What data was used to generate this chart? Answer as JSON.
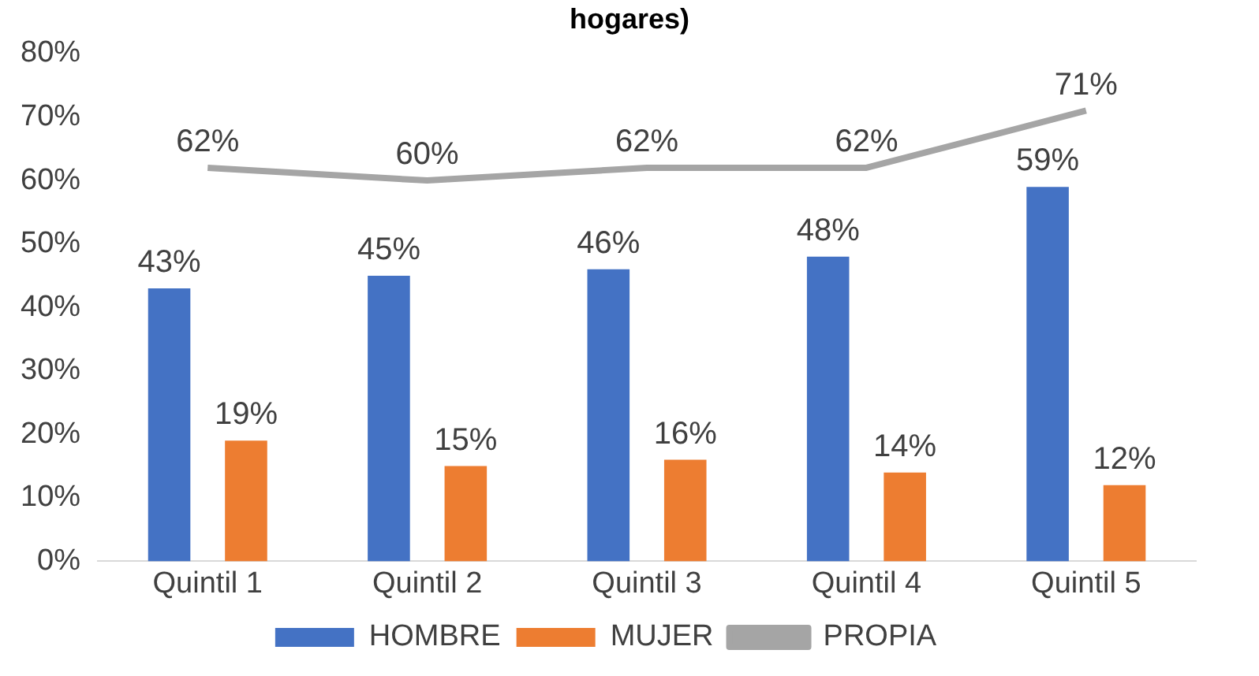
{
  "chart_data": {
    "type": "bar",
    "title": "hogares)",
    "categories": [
      "Quintil 1",
      "Quintil 2",
      "Quintil 3",
      "Quintil 4",
      "Quintil 5"
    ],
    "series": [
      {
        "name": "HOMBRE",
        "color": "#4472c4",
        "values": [
          43,
          45,
          46,
          48,
          59
        ],
        "value_labels": [
          "43%",
          "45%",
          "46%",
          "48%",
          "59%"
        ]
      },
      {
        "name": "MUJER",
        "color": "#ed7d31",
        "values": [
          19,
          15,
          16,
          14,
          12
        ],
        "value_labels": [
          "19%",
          "15%",
          "16%",
          "14%",
          "12%"
        ]
      },
      {
        "name": "PROPIA",
        "type": "line",
        "color": "#a5a5a5",
        "values": [
          62,
          60,
          62,
          62,
          71
        ],
        "value_labels": [
          "62%",
          "60%",
          "62%",
          "62%",
          "71%"
        ]
      }
    ],
    "ylim": [
      0,
      80
    ],
    "yticks": [
      {
        "value": 0,
        "label": "0%"
      },
      {
        "value": 10,
        "label": "10%"
      },
      {
        "value": 20,
        "label": "20%"
      },
      {
        "value": 30,
        "label": "30%"
      },
      {
        "value": 40,
        "label": "40%"
      },
      {
        "value": 50,
        "label": "50%"
      },
      {
        "value": 60,
        "label": "60%"
      },
      {
        "value": 70,
        "label": "70%"
      },
      {
        "value": 80,
        "label": "80%"
      }
    ],
    "grid": false,
    "legend": "bottom",
    "marker": "none"
  }
}
